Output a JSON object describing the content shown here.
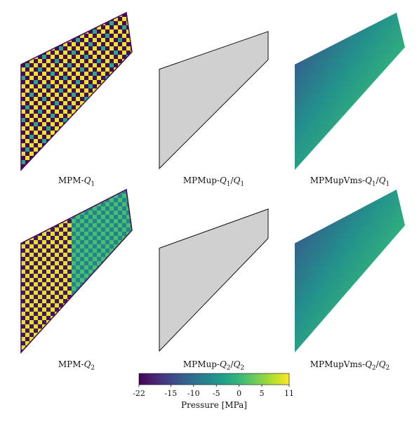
{
  "panels": [
    {
      "id": "mpm-q1",
      "method": "MPM",
      "order": "1",
      "mixed": false,
      "style": "checker"
    },
    {
      "id": "mpmup-q1",
      "method": "MPMup",
      "order": "1",
      "mixed": true,
      "style": "failed"
    },
    {
      "id": "mpmupvms-q1",
      "method": "MPMupVms",
      "order": "1",
      "mixed": true,
      "style": "smooth"
    },
    {
      "id": "mpm-q2",
      "method": "MPM",
      "order": "2",
      "mixed": false,
      "style": "checker2"
    },
    {
      "id": "mpmup-q2",
      "method": "MPMup",
      "order": "2",
      "mixed": true,
      "style": "failed"
    },
    {
      "id": "mpmupvms-q2",
      "method": "MPMupVms",
      "order": "2",
      "mixed": true,
      "style": "smooth"
    }
  ],
  "colorbar": {
    "label": "Pressure [MPa]",
    "min": -22,
    "max": 11,
    "ticks": [
      {
        "value": -22,
        "label": "-22"
      },
      {
        "value": -15,
        "label": "-15"
      },
      {
        "value": -10,
        "label": "-10"
      },
      {
        "value": -5,
        "label": "-5"
      },
      {
        "value": 0,
        "label": "0"
      },
      {
        "value": 5,
        "label": "5"
      },
      {
        "value": 11,
        "label": "11"
      }
    ],
    "colormap": "viridis"
  },
  "colors": {
    "failed_fill": "#d0d0d0",
    "outline": "#111111"
  }
}
